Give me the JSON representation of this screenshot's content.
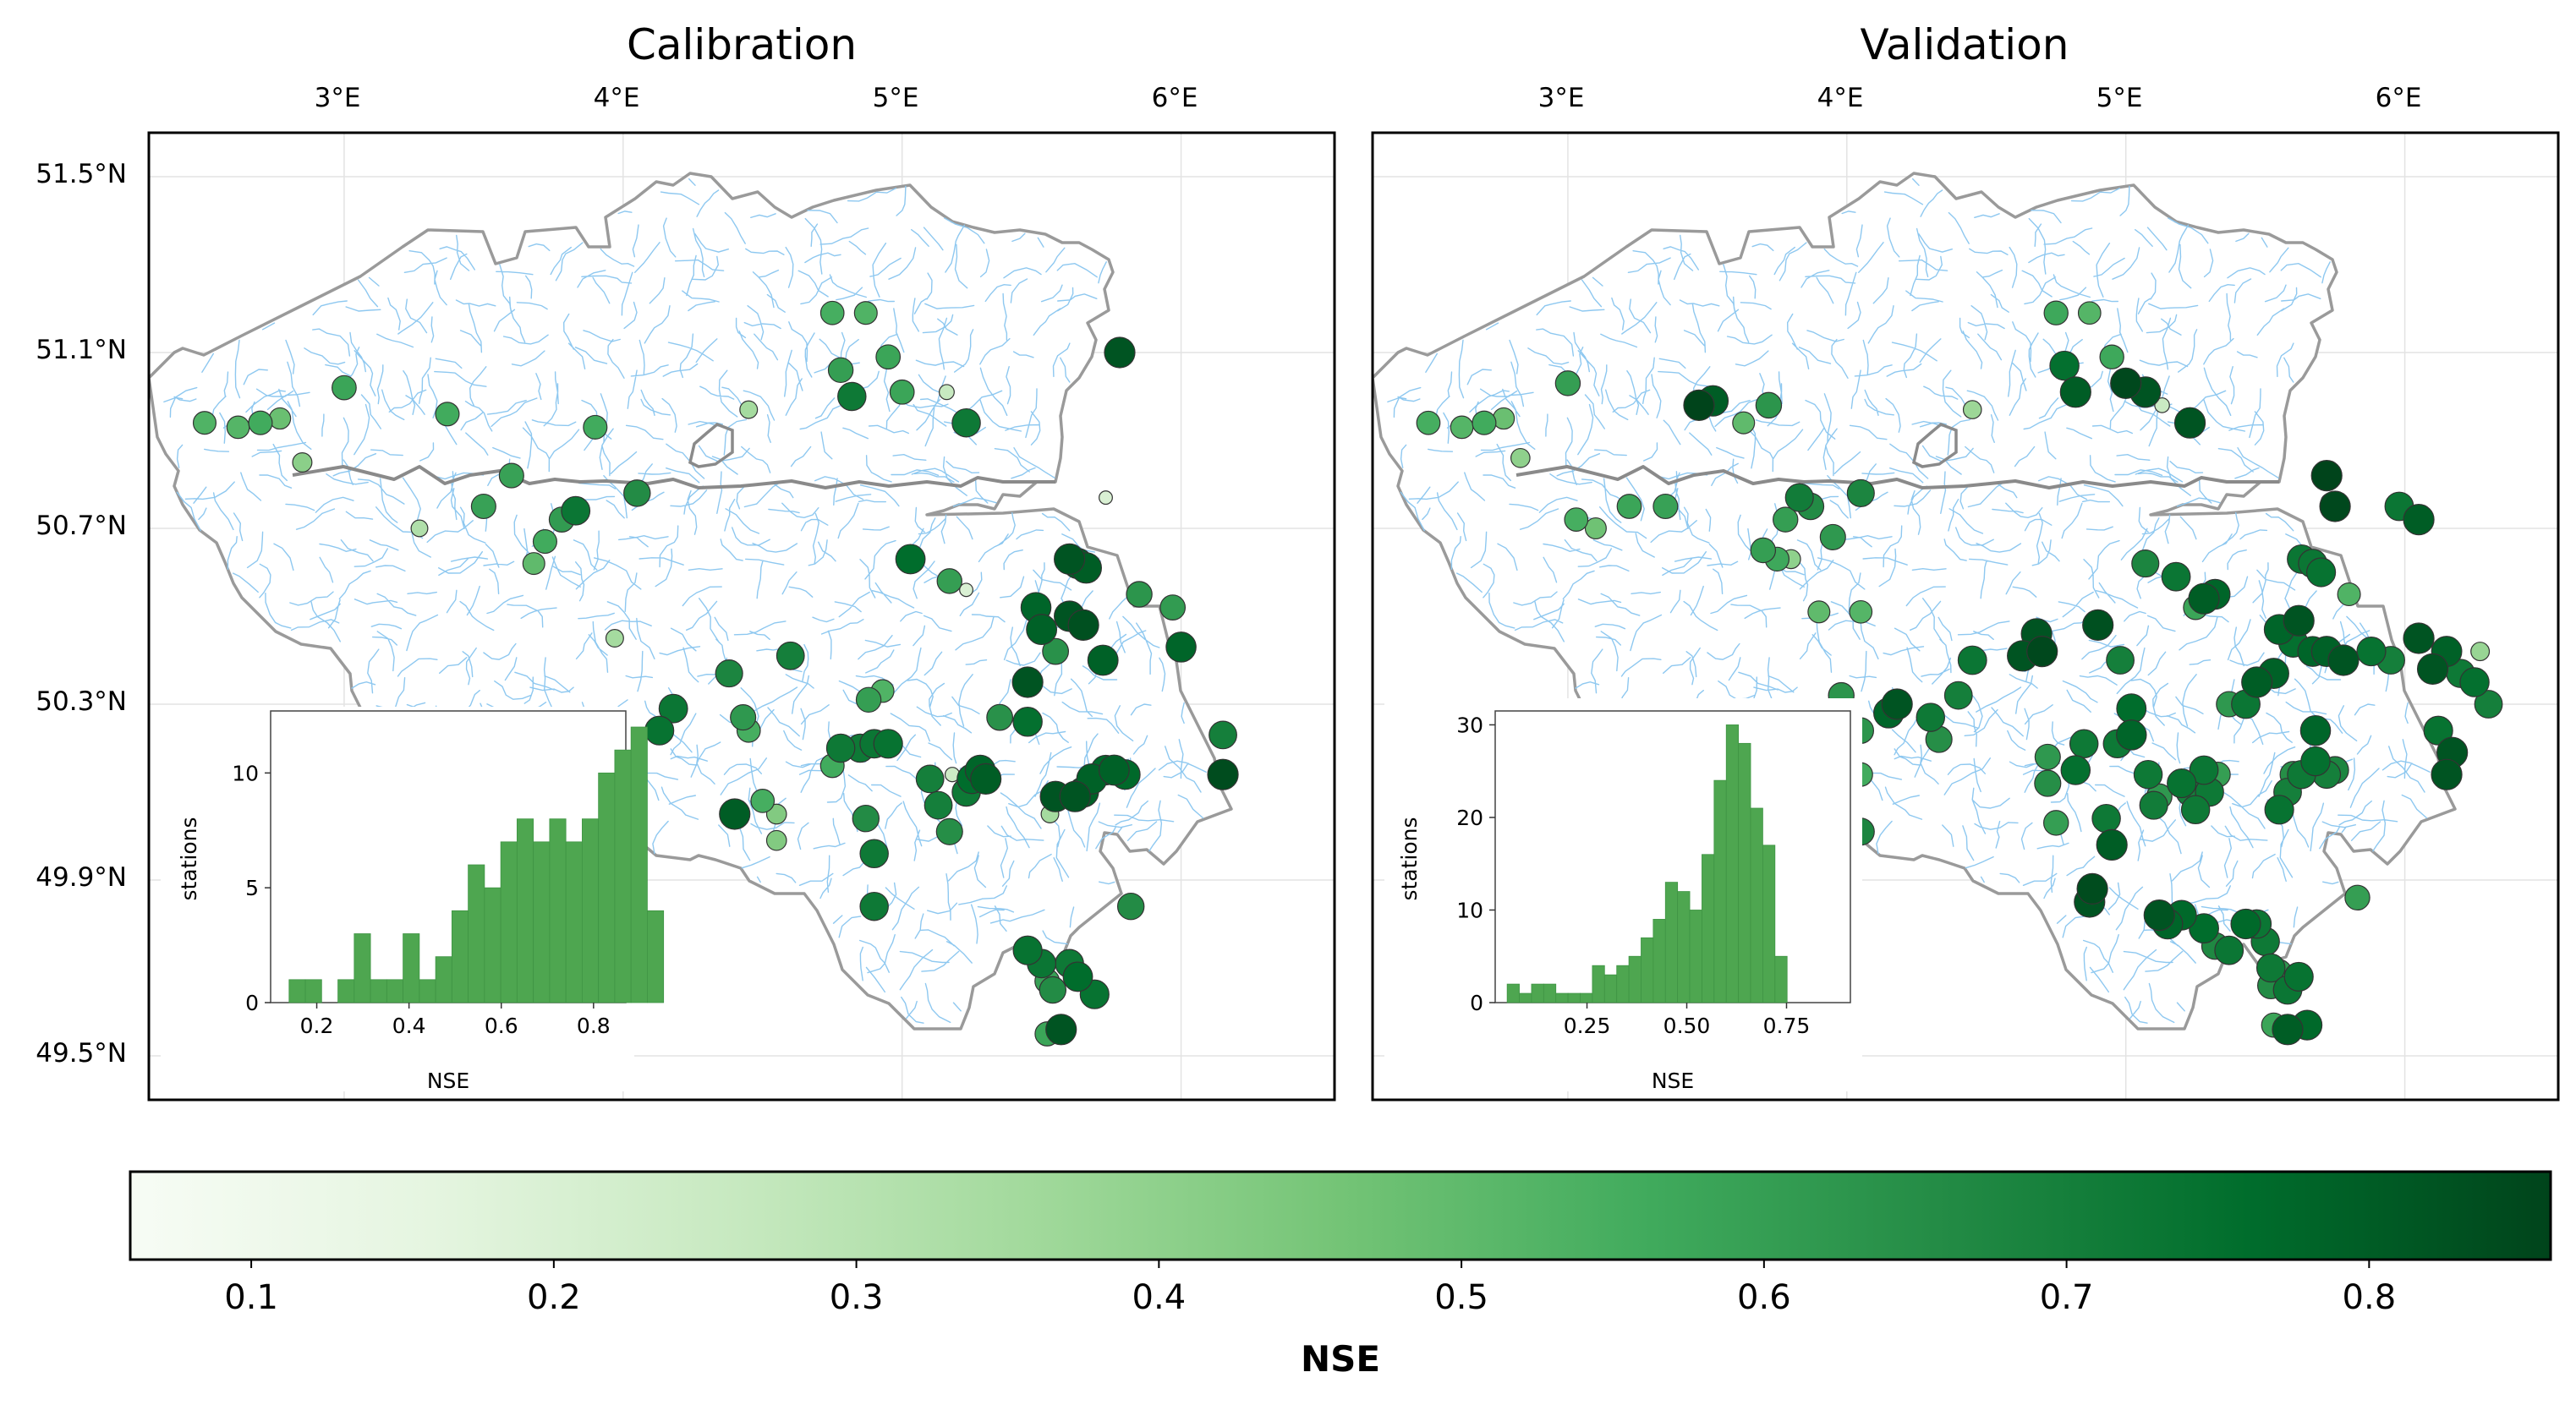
{
  "chart_data": [
    {
      "type": "scatter",
      "title": "Calibration",
      "x_ticks": [
        "3°E",
        "4°E",
        "5°E",
        "6°E"
      ],
      "y_ticks": [
        "51.5°N",
        "51.1°N",
        "50.7°N",
        "50.3°N",
        "49.9°N",
        "49.5°N"
      ],
      "xlim": [
        2.3,
        6.55
      ],
      "ylim": [
        49.4,
        51.6
      ],
      "value_label": "NSE",
      "stations": [
        [
          2.5,
          50.94,
          0.53
        ],
        [
          2.62,
          50.93,
          0.52
        ],
        [
          2.7,
          50.94,
          0.56
        ],
        [
          2.77,
          50.95,
          0.48
        ],
        [
          2.85,
          50.85,
          0.41
        ],
        [
          3.0,
          51.02,
          0.58
        ],
        [
          3.37,
          50.96,
          0.56
        ],
        [
          3.6,
          50.82,
          0.59
        ],
        [
          3.5,
          50.75,
          0.59
        ],
        [
          3.27,
          50.7,
          0.32
        ],
        [
          3.9,
          50.93,
          0.56
        ],
        [
          4.05,
          50.78,
          0.66
        ],
        [
          3.78,
          50.72,
          0.61
        ],
        [
          3.83,
          50.74,
          0.73
        ],
        [
          3.72,
          50.67,
          0.56
        ],
        [
          3.68,
          50.62,
          0.5
        ],
        [
          4.45,
          50.97,
          0.35
        ],
        [
          4.75,
          51.19,
          0.55
        ],
        [
          4.87,
          51.19,
          0.53
        ],
        [
          4.78,
          51.06,
          0.6
        ],
        [
          4.82,
          51.0,
          0.72
        ],
        [
          4.95,
          51.09,
          0.58
        ],
        [
          5.0,
          51.01,
          0.58
        ],
        [
          5.16,
          51.01,
          0.26
        ],
        [
          5.23,
          50.94,
          0.72
        ],
        [
          5.78,
          51.1,
          0.82
        ],
        [
          5.73,
          50.77,
          0.2
        ],
        [
          3.97,
          50.45,
          0.35
        ],
        [
          4.18,
          50.29,
          0.73
        ],
        [
          4.13,
          50.24,
          0.74
        ],
        [
          4.38,
          50.37,
          0.68
        ],
        [
          4.43,
          50.27,
          0.62
        ],
        [
          4.45,
          50.24,
          0.55
        ],
        [
          4.6,
          50.41,
          0.7
        ],
        [
          4.4,
          50.05,
          0.8
        ],
        [
          4.5,
          50.08,
          0.55
        ],
        [
          4.55,
          50.05,
          0.43
        ],
        [
          4.55,
          49.99,
          0.43
        ],
        [
          4.75,
          50.16,
          0.56
        ],
        [
          4.85,
          50.2,
          0.72
        ],
        [
          4.9,
          50.21,
          0.73
        ],
        [
          4.78,
          50.2,
          0.72
        ],
        [
          4.95,
          50.21,
          0.74
        ],
        [
          4.88,
          50.31,
          0.6
        ],
        [
          4.93,
          50.33,
          0.53
        ],
        [
          4.87,
          50.04,
          0.66
        ],
        [
          4.9,
          49.96,
          0.72
        ],
        [
          4.9,
          49.84,
          0.72
        ],
        [
          5.03,
          50.63,
          0.76
        ],
        [
          5.17,
          50.58,
          0.6
        ],
        [
          5.23,
          50.56,
          0.2
        ],
        [
          5.1,
          50.13,
          0.7
        ],
        [
          5.13,
          50.07,
          0.7
        ],
        [
          5.18,
          50.14,
          0.24
        ],
        [
          5.23,
          50.1,
          0.72
        ],
        [
          5.28,
          50.15,
          0.78
        ],
        [
          5.3,
          50.13,
          0.8
        ],
        [
          5.25,
          50.13,
          0.76
        ],
        [
          5.17,
          50.01,
          0.65
        ],
        [
          5.35,
          50.27,
          0.64
        ],
        [
          5.45,
          50.26,
          0.75
        ],
        [
          5.45,
          50.35,
          0.82
        ],
        [
          5.48,
          50.52,
          0.78
        ],
        [
          5.5,
          50.47,
          0.79
        ],
        [
          5.6,
          50.63,
          0.82
        ],
        [
          5.63,
          50.62,
          0.79
        ],
        [
          5.66,
          50.61,
          0.8
        ],
        [
          5.6,
          50.5,
          0.82
        ],
        [
          5.65,
          50.48,
          0.83
        ],
        [
          5.55,
          50.42,
          0.64
        ],
        [
          5.72,
          50.4,
          0.79
        ],
        [
          5.85,
          50.55,
          0.63
        ],
        [
          5.97,
          50.52,
          0.61
        ],
        [
          6.0,
          50.43,
          0.78
        ],
        [
          5.55,
          50.09,
          0.82
        ],
        [
          5.62,
          50.09,
          0.82
        ],
        [
          5.65,
          50.1,
          0.79
        ],
        [
          5.68,
          50.13,
          0.79
        ],
        [
          5.73,
          50.15,
          0.77
        ],
        [
          5.76,
          50.15,
          0.79
        ],
        [
          5.8,
          50.14,
          0.77
        ],
        [
          5.53,
          50.05,
          0.35
        ],
        [
          6.15,
          50.23,
          0.7
        ],
        [
          6.15,
          50.14,
          0.84
        ],
        [
          5.82,
          49.84,
          0.66
        ],
        [
          5.6,
          49.71,
          0.72
        ],
        [
          5.63,
          49.68,
          0.76
        ],
        [
          5.69,
          49.64,
          0.74
        ],
        [
          5.52,
          49.67,
          0.59
        ],
        [
          5.45,
          49.74,
          0.74
        ],
        [
          5.5,
          49.71,
          0.73
        ],
        [
          5.54,
          49.65,
          0.66
        ],
        [
          5.52,
          49.55,
          0.58
        ],
        [
          5.57,
          49.56,
          0.82
        ]
      ],
      "histogram": {
        "xlabel": "NSE",
        "ylabel": "stations",
        "x_ticks": [
          "0.2",
          "0.4",
          "0.6",
          "0.8"
        ],
        "y_ticks": [
          "0",
          "5",
          "10"
        ],
        "xlim": [
          0.1,
          0.87
        ],
        "ylim": [
          0,
          12.7
        ],
        "bin_start": 0.14,
        "bin_width": 0.0353,
        "counts": [
          1,
          1,
          0,
          1,
          3,
          1,
          1,
          3,
          1,
          2,
          4,
          6,
          5,
          7,
          8,
          7,
          8,
          7,
          8,
          10,
          11,
          12,
          4
        ]
      }
    },
    {
      "type": "scatter",
      "title": "Validation",
      "x_ticks": [
        "3°E",
        "4°E",
        "5°E",
        "6°E"
      ],
      "y_ticks": [],
      "xlim": [
        2.3,
        6.55
      ],
      "ylim": [
        49.4,
        51.6
      ],
      "value_label": "NSE",
      "stations": [
        [
          2.5,
          50.94,
          0.55
        ],
        [
          2.62,
          50.93,
          0.52
        ],
        [
          2.7,
          50.94,
          0.56
        ],
        [
          2.77,
          50.95,
          0.48
        ],
        [
          2.83,
          50.86,
          0.4
        ],
        [
          3.0,
          51.03,
          0.6
        ],
        [
          3.03,
          50.72,
          0.55
        ],
        [
          3.1,
          50.7,
          0.47
        ],
        [
          3.22,
          50.75,
          0.58
        ],
        [
          3.35,
          50.75,
          0.59
        ],
        [
          3.47,
          50.98,
          0.86
        ],
        [
          3.52,
          50.99,
          0.8
        ],
        [
          3.72,
          50.98,
          0.63
        ],
        [
          3.63,
          50.94,
          0.5
        ],
        [
          3.83,
          50.77,
          0.71
        ],
        [
          3.87,
          50.75,
          0.66
        ],
        [
          3.78,
          50.72,
          0.6
        ],
        [
          3.7,
          50.65,
          0.6
        ],
        [
          3.75,
          50.63,
          0.57
        ],
        [
          3.8,
          50.63,
          0.4
        ],
        [
          3.95,
          50.68,
          0.62
        ],
        [
          4.05,
          50.78,
          0.68
        ],
        [
          4.05,
          50.51,
          0.52
        ],
        [
          3.9,
          50.51,
          0.5
        ],
        [
          4.45,
          50.97,
          0.37
        ],
        [
          4.75,
          51.19,
          0.57
        ],
        [
          4.87,
          51.19,
          0.52
        ],
        [
          4.78,
          51.07,
          0.75
        ],
        [
          4.82,
          51.01,
          0.8
        ],
        [
          4.95,
          51.09,
          0.57
        ],
        [
          5.0,
          51.03,
          0.85
        ],
        [
          5.07,
          51.01,
          0.82
        ],
        [
          5.13,
          50.98,
          0.25
        ],
        [
          5.23,
          50.94,
          0.82
        ],
        [
          5.72,
          50.82,
          0.88
        ],
        [
          5.73,
          50.76,
          0.33
        ],
        [
          5.75,
          50.75,
          0.85
        ],
        [
          5.98,
          50.75,
          0.73
        ],
        [
          6.05,
          50.72,
          0.8
        ],
        [
          6.05,
          50.45,
          0.82
        ],
        [
          5.63,
          50.63,
          0.73
        ],
        [
          5.67,
          50.62,
          0.73
        ],
        [
          5.7,
          50.6,
          0.74
        ],
        [
          5.8,
          50.55,
          0.53
        ],
        [
          5.62,
          50.49,
          0.82
        ],
        [
          5.55,
          50.47,
          0.78
        ],
        [
          5.6,
          50.44,
          0.75
        ],
        [
          5.67,
          50.42,
          0.78
        ],
        [
          5.72,
          50.42,
          0.79
        ],
        [
          5.88,
          50.42,
          0.74
        ],
        [
          5.95,
          50.4,
          0.7
        ],
        [
          5.78,
          50.4,
          0.82
        ],
        [
          6.15,
          50.42,
          0.79
        ],
        [
          6.1,
          50.38,
          0.82
        ],
        [
          6.2,
          50.37,
          0.72
        ],
        [
          6.25,
          50.35,
          0.75
        ],
        [
          6.27,
          50.42,
          0.38
        ],
        [
          6.3,
          50.3,
          0.7
        ],
        [
          6.12,
          50.24,
          0.74
        ],
        [
          6.17,
          50.19,
          0.82
        ],
        [
          6.15,
          50.14,
          0.82
        ],
        [
          4.68,
          50.46,
          0.82
        ],
        [
          4.7,
          50.42,
          0.85
        ],
        [
          4.63,
          50.41,
          0.82
        ],
        [
          4.45,
          50.4,
          0.73
        ],
        [
          4.4,
          50.32,
          0.7
        ],
        [
          4.3,
          50.27,
          0.72
        ],
        [
          4.33,
          50.22,
          0.65
        ],
        [
          4.18,
          50.3,
          0.82
        ],
        [
          4.15,
          50.28,
          0.78
        ],
        [
          4.05,
          50.24,
          0.63
        ],
        [
          4.05,
          50.14,
          0.56
        ],
        [
          4.05,
          50.01,
          0.68
        ],
        [
          3.98,
          50.32,
          0.63
        ],
        [
          4.9,
          50.48,
          0.83
        ],
        [
          4.98,
          50.4,
          0.7
        ],
        [
          5.07,
          50.62,
          0.68
        ],
        [
          5.18,
          50.59,
          0.73
        ],
        [
          5.28,
          50.54,
          0.8
        ],
        [
          5.32,
          50.55,
          0.78
        ],
        [
          5.25,
          50.52,
          0.58
        ],
        [
          5.02,
          50.29,
          0.76
        ],
        [
          5.02,
          50.23,
          0.78
        ],
        [
          4.97,
          50.21,
          0.72
        ],
        [
          4.85,
          50.21,
          0.72
        ],
        [
          4.82,
          50.15,
          0.75
        ],
        [
          4.72,
          50.18,
          0.62
        ],
        [
          4.72,
          50.12,
          0.65
        ],
        [
          4.75,
          50.03,
          0.6
        ],
        [
          4.93,
          50.04,
          0.72
        ],
        [
          4.95,
          49.98,
          0.8
        ],
        [
          4.88,
          49.88,
          0.84
        ],
        [
          4.87,
          49.85,
          0.82
        ],
        [
          5.08,
          50.14,
          0.72
        ],
        [
          5.1,
          50.07,
          0.71
        ],
        [
          5.12,
          50.09,
          0.62
        ],
        [
          5.23,
          50.1,
          0.7
        ],
        [
          5.2,
          50.12,
          0.74
        ],
        [
          5.28,
          50.15,
          0.73
        ],
        [
          5.33,
          50.14,
          0.6
        ],
        [
          5.3,
          50.1,
          0.72
        ],
        [
          5.25,
          50.06,
          0.72
        ],
        [
          5.37,
          50.3,
          0.62
        ],
        [
          5.43,
          50.3,
          0.73
        ],
        [
          5.47,
          50.35,
          0.8
        ],
        [
          5.53,
          50.37,
          0.79
        ],
        [
          5.68,
          50.24,
          0.78
        ],
        [
          5.68,
          50.17,
          0.75
        ],
        [
          5.6,
          50.14,
          0.65
        ],
        [
          5.58,
          50.1,
          0.7
        ],
        [
          5.55,
          50.06,
          0.74
        ],
        [
          5.63,
          50.14,
          0.72
        ],
        [
          5.72,
          50.14,
          0.7
        ],
        [
          5.75,
          50.15,
          0.68
        ],
        [
          5.12,
          49.82,
          0.82
        ],
        [
          5.2,
          49.82,
          0.77
        ],
        [
          5.15,
          49.8,
          0.78
        ],
        [
          5.28,
          49.79,
          0.76
        ],
        [
          5.32,
          49.75,
          0.67
        ],
        [
          5.37,
          49.74,
          0.73
        ],
        [
          5.43,
          49.8,
          0.77
        ],
        [
          5.47,
          49.8,
          0.73
        ],
        [
          5.5,
          49.76,
          0.72
        ],
        [
          5.83,
          49.86,
          0.6
        ],
        [
          5.58,
          49.65,
          0.73
        ],
        [
          5.62,
          49.68,
          0.74
        ],
        [
          5.55,
          49.69,
          0.62
        ],
        [
          5.52,
          49.66,
          0.66
        ],
        [
          5.53,
          49.57,
          0.58
        ],
        [
          5.58,
          49.56,
          0.8
        ],
        [
          5.65,
          49.57,
          0.77
        ],
        [
          5.52,
          49.7,
          0.72
        ]
      ],
      "histogram": {
        "xlabel": "NSE",
        "ylabel": "stations",
        "x_ticks": [
          "0.25",
          "0.50",
          "0.75"
        ],
        "y_ticks": [
          "0",
          "10",
          "20",
          "30"
        ],
        "xlim": [
          0.02,
          0.91
        ],
        "ylim": [
          0,
          31.5
        ],
        "bin_start": 0.05,
        "bin_width": 0.0305,
        "counts": [
          2,
          1,
          2,
          2,
          1,
          1,
          1,
          4,
          3,
          4,
          5,
          7,
          9,
          13,
          12,
          10,
          16,
          24,
          30,
          28,
          21,
          17,
          5
        ]
      }
    }
  ],
  "colorbar": {
    "label": "NSE",
    "ticks": [
      "0.1",
      "0.2",
      "0.3",
      "0.4",
      "0.5",
      "0.6",
      "0.7",
      "0.8"
    ],
    "range": [
      0.06,
      0.86
    ],
    "colormap": [
      "#f7fcf5",
      "#e5f5e0",
      "#c7e9c0",
      "#a1d99b",
      "#74c476",
      "#41ab5d",
      "#238b45",
      "#006d2c",
      "#00441b"
    ]
  },
  "colors": {
    "histogram_bar": "#4ea650",
    "river": "#8ec8f0",
    "border": "#9a9a9a",
    "grid": "#e3e3e3"
  }
}
